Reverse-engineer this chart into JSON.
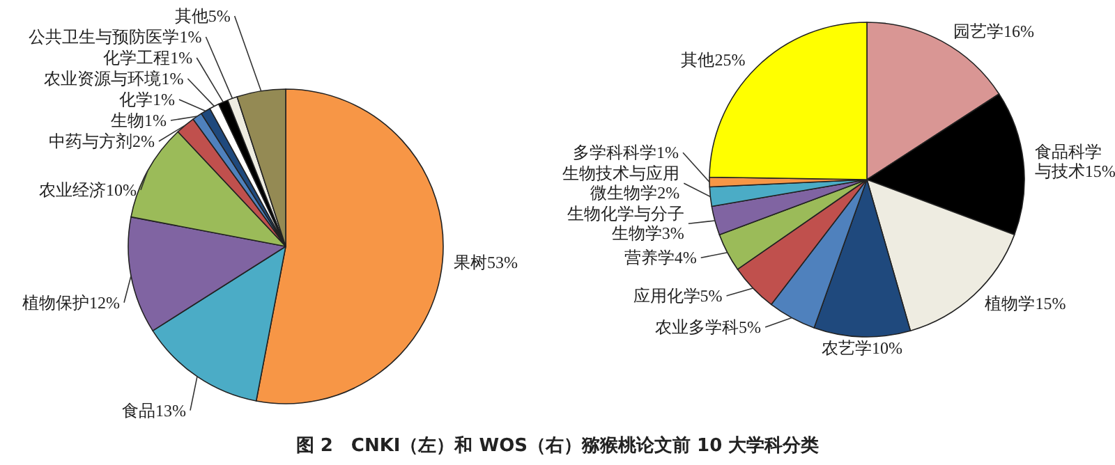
{
  "chart_data": [
    {
      "type": "pie",
      "categories": [
        "果树",
        "食品",
        "植物保护",
        "农业经济",
        "中药与方剂",
        "生物",
        "化学",
        "农业资源与环境",
        "化学工程",
        "公共卫生与预防医学",
        "其他"
      ],
      "values": [
        53,
        13,
        12,
        10,
        2,
        1,
        1,
        1,
        1,
        1,
        5
      ],
      "value_labels": [
        "53%",
        "13%",
        "12%",
        "10%",
        "2%",
        "1%",
        "1%",
        "1%",
        "1%",
        "1%",
        "5%"
      ],
      "colors": [
        "#f79646",
        "#4bacc6",
        "#8064a2",
        "#9bbb59",
        "#c0504d",
        "#4f81bd",
        "#1f497d",
        "#ffffff",
        "#000000",
        "#eeece1",
        "#948a54"
      ],
      "annotations": [
        "图 2　CNKI（左）和 WOS（右）猕猴桃论文前 10 大学科分类"
      ]
    },
    {
      "type": "pie",
      "categories": [
        "园艺学",
        "食品科学与技术",
        "植物学",
        "农艺学",
        "农业多学科",
        "应用化学",
        "营养学",
        "生物化学与分子生物学",
        "生物技术与应用微生物学",
        "多学科科学",
        "其他"
      ],
      "values": [
        16,
        15,
        15,
        10,
        5,
        5,
        4,
        3,
        2,
        1,
        25
      ],
      "value_labels": [
        "16%",
        "15%",
        "15%",
        "10%",
        "5%",
        "5%",
        "4%",
        "3%",
        "2%",
        "1%",
        "25%"
      ],
      "colors": [
        "#d99694",
        "#000000",
        "#eeece1",
        "#1f497d",
        "#4f81bd",
        "#c0504d",
        "#9bbb59",
        "#8064a2",
        "#4bacc6",
        "#f79646",
        "#ffff00"
      ]
    }
  ]
}
